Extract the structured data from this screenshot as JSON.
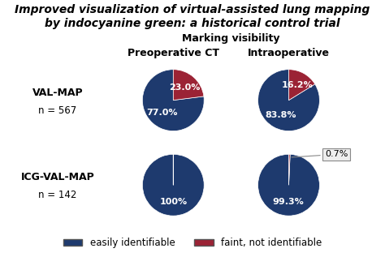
{
  "title": "Improved visualization of virtual-assisted lung mapping",
  "subtitle": "by indocyanine green: a historical control trial",
  "annotation": "Marking visibility",
  "column_labels": [
    "Preoperative CT",
    "Intraoperative"
  ],
  "row_labels": [
    "VAL-MAP",
    "ICG-VAL-MAP"
  ],
  "row_annotations": [
    "n = 567",
    "n = 142"
  ],
  "legend": "lower center",
  "chart_data": [
    {
      "type": "pie",
      "categories": [
        "easily identifiable",
        "faint, not identifiable"
      ],
      "values": [
        77.0,
        23.0
      ],
      "value_labels": [
        "77.0%",
        "23.0%"
      ],
      "colors": [
        "#1e3a6e",
        "#9b2335"
      ],
      "data_labels": true
    },
    {
      "type": "pie",
      "categories": [
        "easily identifiable",
        "faint, not identifiable"
      ],
      "values": [
        83.8,
        16.2
      ],
      "value_labels": [
        "83.8%",
        "16.2%"
      ],
      "colors": [
        "#1e3a6e",
        "#9b2335"
      ],
      "data_labels": true
    },
    {
      "type": "pie",
      "categories": [
        "easily identifiable",
        "faint, not identifiable"
      ],
      "values": [
        100.0,
        0.001
      ],
      "value_labels": [
        "100%",
        null
      ],
      "colors": [
        "#1e3a6e",
        "#1e3a6e"
      ],
      "data_labels": true
    },
    {
      "type": "pie",
      "categories": [
        "easily identifiable",
        "faint, not identifiable"
      ],
      "values": [
        99.3,
        0.7
      ],
      "value_labels": [
        "99.3%",
        "0.7%"
      ],
      "colors": [
        "#1e3a6e",
        "#9b2335"
      ],
      "data_labels": true
    }
  ]
}
